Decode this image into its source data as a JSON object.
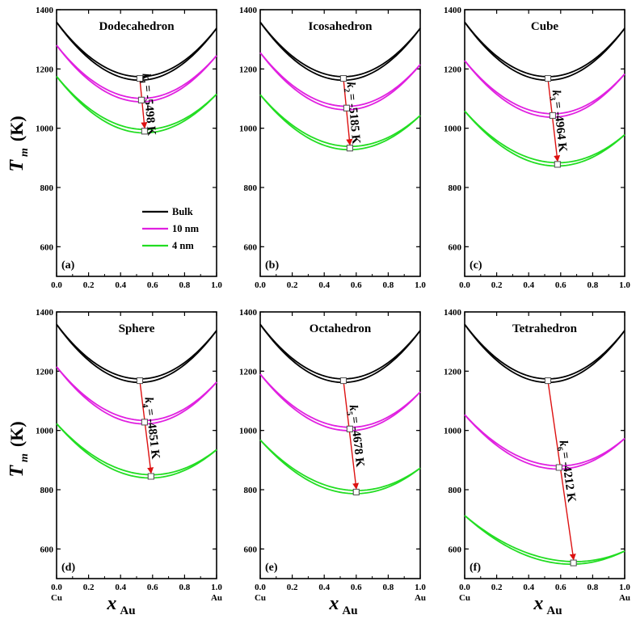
{
  "figure": {
    "y_axis_label_main": "T",
    "y_axis_label_sub": "m",
    "y_axis_label_unit": "(K)",
    "x_axis_label_main": "x",
    "x_axis_label_sub": "Au",
    "x_left_end_label": "Cu",
    "x_right_end_label": "Au"
  },
  "legend": {
    "placement": "lower-right of panel (a)",
    "entries": [
      {
        "label": "Bulk",
        "color": "#000000"
      },
      {
        "label": "10 nm",
        "color": "#e020e0"
      },
      {
        "label": "4 nm",
        "color": "#22dd22"
      }
    ]
  },
  "colors": {
    "bulk": "#000000",
    "nm10": "#e020e0",
    "nm4": "#22dd22",
    "arrow": "#dd1111"
  },
  "chart_data": [
    {
      "type": "line",
      "panel_letter": "(a)",
      "title": "Dodecahedron",
      "k_symbol": "k",
      "k_sub": "1",
      "k_text": "= -5498 K",
      "xlim": [
        0.0,
        1.0
      ],
      "ylim": [
        500,
        1400
      ],
      "x_ticks": [
        "0.0",
        "0.2",
        "0.4",
        "0.6",
        "0.8",
        "1.0"
      ],
      "y_ticks": [
        "600",
        "800",
        "1000",
        "1200",
        "1400"
      ],
      "series": [
        {
          "name": "Bulk",
          "y_at_cu": 1358,
          "y_at_au": 1337,
          "min_x": 0.52,
          "min_y": 1168
        },
        {
          "name": "10 nm",
          "y_at_cu": 1280,
          "y_at_au": 1245,
          "min_x": 0.53,
          "min_y": 1095
        },
        {
          "name": "4 nm",
          "y_at_cu": 1175,
          "y_at_au": 1115,
          "min_x": 0.55,
          "min_y": 990
        }
      ],
      "arrow": {
        "from": [
          0.52,
          1168
        ],
        "to": [
          0.55,
          990
        ]
      }
    },
    {
      "type": "line",
      "panel_letter": "(b)",
      "title": "Icosahedron",
      "k_symbol": "k",
      "k_sub": "2",
      "k_text": "= -5185 K",
      "xlim": [
        0.0,
        1.0
      ],
      "ylim": [
        500,
        1400
      ],
      "x_ticks": [
        "0.0",
        "0.2",
        "0.4",
        "0.6",
        "0.8",
        "1.0"
      ],
      "y_ticks": [
        "600",
        "800",
        "1000",
        "1200",
        "1400"
      ],
      "series": [
        {
          "name": "Bulk",
          "y_at_cu": 1358,
          "y_at_au": 1337,
          "min_x": 0.52,
          "min_y": 1168
        },
        {
          "name": "10 nm",
          "y_at_cu": 1255,
          "y_at_au": 1215,
          "min_x": 0.54,
          "min_y": 1068
        },
        {
          "name": "4 nm",
          "y_at_cu": 1113,
          "y_at_au": 1043,
          "min_x": 0.56,
          "min_y": 933
        }
      ],
      "arrow": {
        "from": [
          0.52,
          1168
        ],
        "to": [
          0.56,
          933
        ]
      }
    },
    {
      "type": "line",
      "panel_letter": "(c)",
      "title": "Cube",
      "k_symbol": "k",
      "k_sub": "3",
      "k_text": "= -4964 K",
      "xlim": [
        0.0,
        1.0
      ],
      "ylim": [
        500,
        1400
      ],
      "x_ticks": [
        "0.0",
        "0.2",
        "0.4",
        "0.6",
        "0.8",
        "1.0"
      ],
      "y_ticks": [
        "600",
        "800",
        "1000",
        "1200",
        "1400"
      ],
      "series": [
        {
          "name": "Bulk",
          "y_at_cu": 1358,
          "y_at_au": 1337,
          "min_x": 0.52,
          "min_y": 1168
        },
        {
          "name": "10 nm",
          "y_at_cu": 1228,
          "y_at_au": 1183,
          "min_x": 0.55,
          "min_y": 1043
        },
        {
          "name": "4 nm",
          "y_at_cu": 1058,
          "y_at_au": 978,
          "min_x": 0.58,
          "min_y": 878
        }
      ],
      "arrow": {
        "from": [
          0.52,
          1168
        ],
        "to": [
          0.58,
          878
        ]
      }
    },
    {
      "type": "line",
      "panel_letter": "(d)",
      "title": "Sphere",
      "k_symbol": "k",
      "k_sub": "4",
      "k_text": "= -4851 K",
      "xlim": [
        0.0,
        1.0
      ],
      "ylim": [
        500,
        1400
      ],
      "x_ticks": [
        "0.0",
        "0.2",
        "0.4",
        "0.6",
        "0.8",
        "1.0"
      ],
      "y_ticks": [
        "600",
        "800",
        "1000",
        "1200",
        "1400"
      ],
      "series": [
        {
          "name": "Bulk",
          "y_at_cu": 1358,
          "y_at_au": 1337,
          "min_x": 0.52,
          "min_y": 1168
        },
        {
          "name": "10 nm",
          "y_at_cu": 1215,
          "y_at_au": 1163,
          "min_x": 0.55,
          "min_y": 1028
        },
        {
          "name": "4 nm",
          "y_at_cu": 1023,
          "y_at_au": 935,
          "min_x": 0.59,
          "min_y": 845
        }
      ],
      "arrow": {
        "from": [
          0.52,
          1168
        ],
        "to": [
          0.59,
          845
        ]
      }
    },
    {
      "type": "line",
      "panel_letter": "(e)",
      "title": "Octahedron",
      "k_symbol": "k",
      "k_sub": "5",
      "k_text": "= -4678 K",
      "xlim": [
        0.0,
        1.0
      ],
      "ylim": [
        500,
        1400
      ],
      "x_ticks": [
        "0.0",
        "0.2",
        "0.4",
        "0.6",
        "0.8",
        "1.0"
      ],
      "y_ticks": [
        "600",
        "800",
        "1000",
        "1200",
        "1400"
      ],
      "series": [
        {
          "name": "Bulk",
          "y_at_cu": 1358,
          "y_at_au": 1337,
          "min_x": 0.52,
          "min_y": 1168
        },
        {
          "name": "10 nm",
          "y_at_cu": 1190,
          "y_at_au": 1130,
          "min_x": 0.56,
          "min_y": 1005
        },
        {
          "name": "4 nm",
          "y_at_cu": 968,
          "y_at_au": 873,
          "min_x": 0.6,
          "min_y": 792
        }
      ],
      "arrow": {
        "from": [
          0.52,
          1168
        ],
        "to": [
          0.6,
          792
        ]
      }
    },
    {
      "type": "line",
      "panel_letter": "(f)",
      "title": "Tetrahedron",
      "k_symbol": "k",
      "k_sub": "6",
      "k_text": "= -4212 K",
      "xlim": [
        0.0,
        1.0
      ],
      "ylim": [
        500,
        1400
      ],
      "x_ticks": [
        "0.0",
        "0.2",
        "0.4",
        "0.6",
        "0.8",
        "1.0"
      ],
      "y_ticks": [
        "600",
        "800",
        "1000",
        "1200",
        "1400"
      ],
      "series": [
        {
          "name": "Bulk",
          "y_at_cu": 1358,
          "y_at_au": 1337,
          "min_x": 0.52,
          "min_y": 1168
        },
        {
          "name": "10 nm",
          "y_at_cu": 1053,
          "y_at_au": 973,
          "min_x": 0.59,
          "min_y": 875
        },
        {
          "name": "4 nm",
          "y_at_cu": 713,
          "y_at_au": 593,
          "min_x": 0.68,
          "min_y": 553
        }
      ],
      "arrow": {
        "from": [
          0.52,
          1168
        ],
        "to": [
          0.68,
          553
        ]
      }
    }
  ]
}
